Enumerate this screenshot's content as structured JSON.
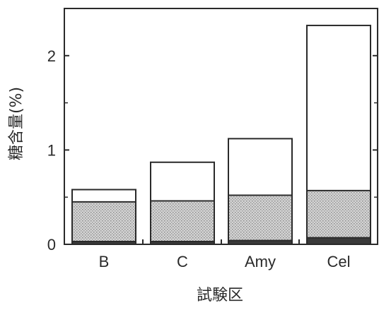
{
  "chart_data": {
    "type": "bar",
    "stacked": true,
    "categories": [
      "B",
      "C",
      "Amy",
      "Cel"
    ],
    "series": [
      {
        "values": [
          0.03,
          0.03,
          0.04,
          0.07
        ],
        "color": "#3a3a3a",
        "fill": "solid"
      },
      {
        "values": [
          0.42,
          0.43,
          0.48,
          0.5
        ],
        "color": "#b8b8b8",
        "fill": "stipple"
      },
      {
        "values": [
          0.13,
          0.41,
          0.6,
          1.75
        ],
        "color": "#ffffff",
        "fill": "none"
      }
    ],
    "ylim": [
      0,
      2.5
    ],
    "yticks": [
      0,
      1,
      2
    ],
    "ytick_labels": [
      "0",
      "1",
      "2"
    ],
    "xlabel": "試験区",
    "ylabel": "糖含量(%)",
    "grid": false,
    "legend": "none"
  }
}
